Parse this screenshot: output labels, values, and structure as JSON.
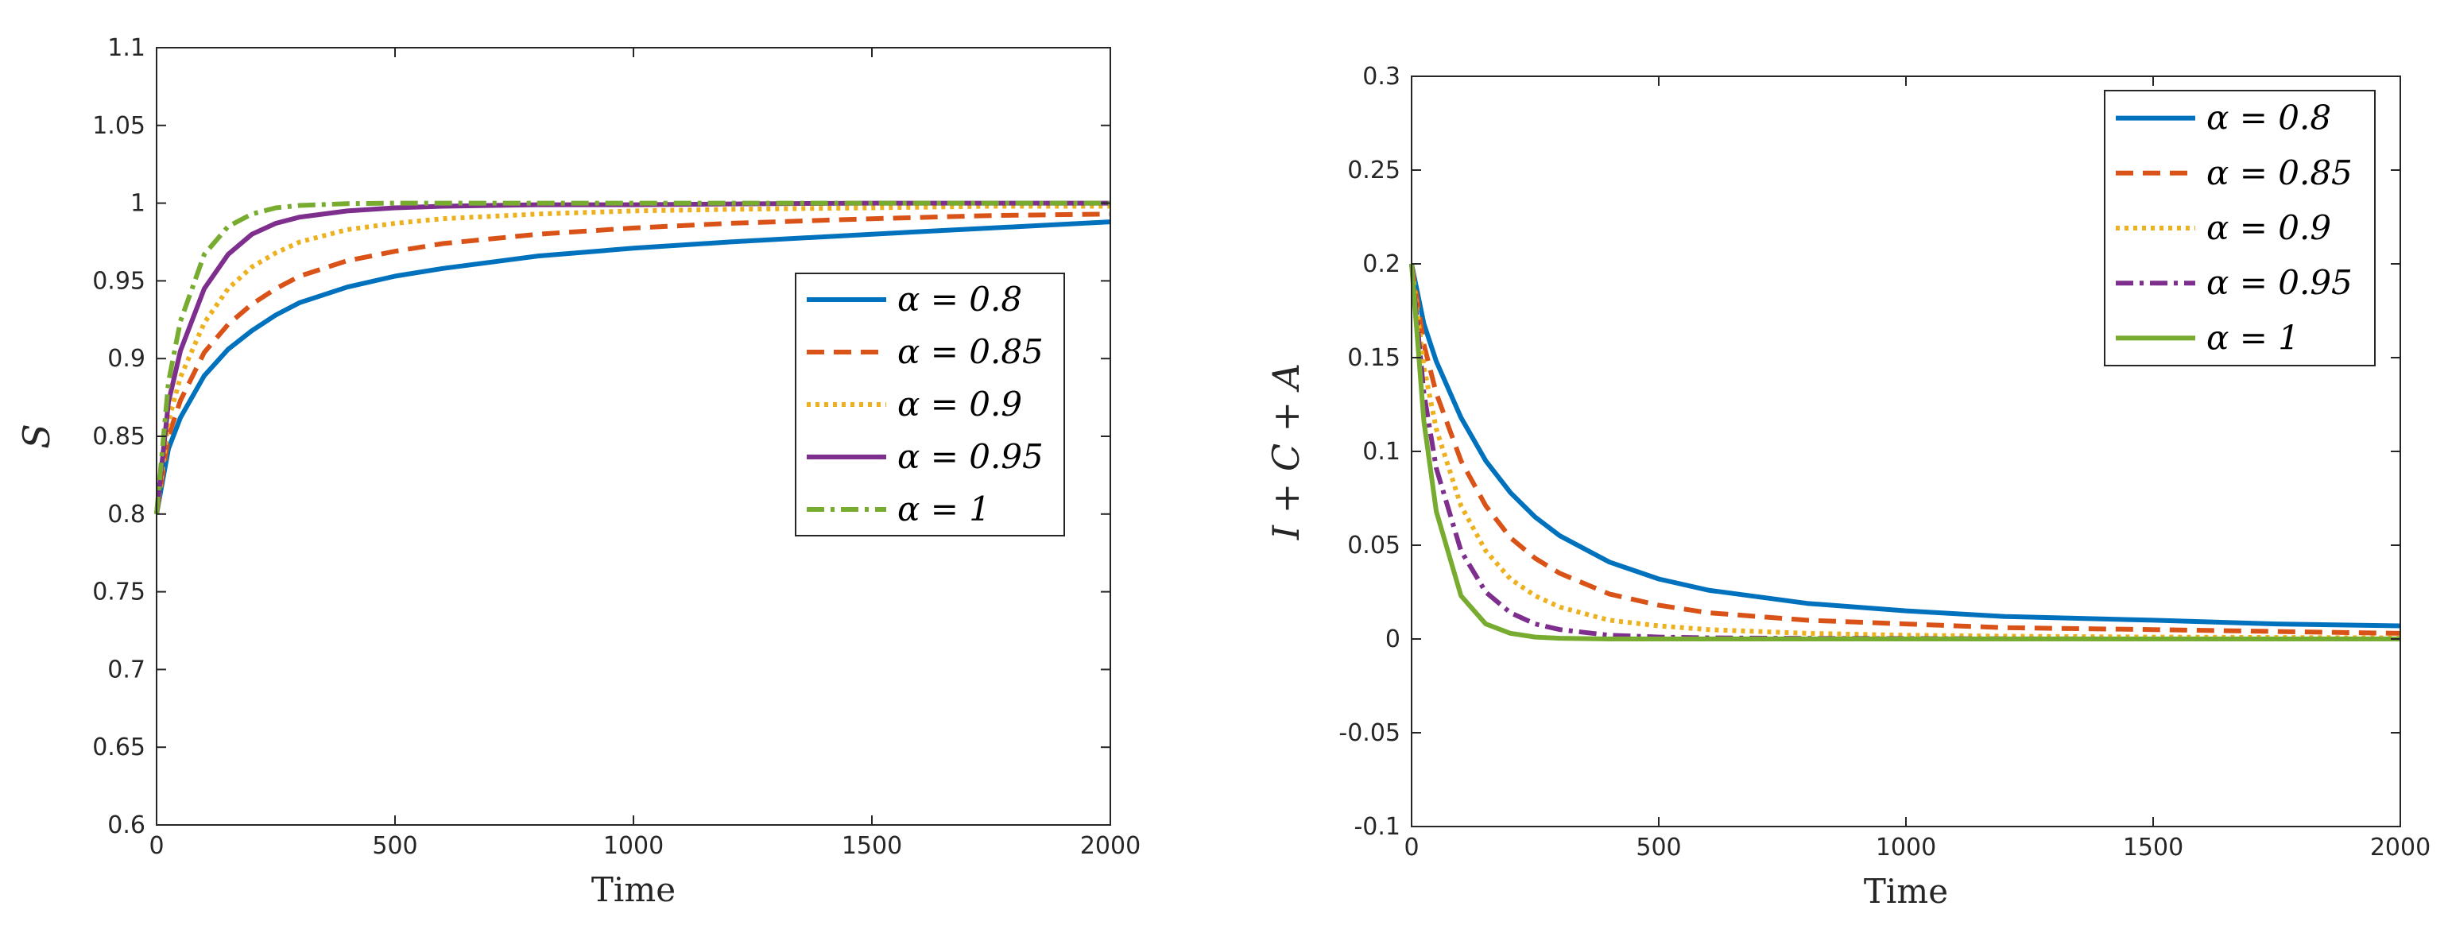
{
  "chart_data": [
    {
      "type": "line",
      "xlabel": "Time",
      "ylabel": "S",
      "xlim": [
        0,
        2000
      ],
      "ylim": [
        0.6,
        1.1
      ],
      "xticks": [
        0,
        500,
        1000,
        1500,
        2000
      ],
      "xtick_labels": [
        "0",
        "500",
        "1000",
        "1500",
        "2000"
      ],
      "yticks": [
        0.6,
        0.65,
        0.7,
        0.75,
        0.8,
        0.85,
        0.9,
        0.95,
        1,
        1.05,
        1.1
      ],
      "ytick_labels": [
        "0.6",
        "0.65",
        "0.7",
        "0.75",
        "0.8",
        "0.85",
        "0.9",
        "0.95",
        "1",
        "1.05",
        "1.1"
      ],
      "legend_position": "middle-right",
      "x": [
        0,
        25,
        50,
        100,
        150,
        200,
        250,
        300,
        400,
        500,
        600,
        800,
        1000,
        1200,
        1500,
        1750,
        2000
      ],
      "series": [
        {
          "name": "α = 0.8",
          "color": "#0072BD",
          "dash": "solid",
          "values": [
            0.8,
            0.842,
            0.862,
            0.889,
            0.906,
            0.918,
            0.928,
            0.936,
            0.946,
            0.953,
            0.958,
            0.966,
            0.971,
            0.975,
            0.98,
            0.984,
            0.988
          ]
        },
        {
          "name": "α = 0.85",
          "color": "#D95319",
          "dash": "dashed",
          "values": [
            0.8,
            0.85,
            0.873,
            0.904,
            0.922,
            0.935,
            0.945,
            0.953,
            0.963,
            0.969,
            0.974,
            0.98,
            0.984,
            0.987,
            0.99,
            0.992,
            0.993
          ]
        },
        {
          "name": "α = 0.9",
          "color": "#EDB120",
          "dash": "dotted",
          "values": [
            0.8,
            0.86,
            0.888,
            0.923,
            0.945,
            0.959,
            0.968,
            0.975,
            0.983,
            0.987,
            0.99,
            0.993,
            0.995,
            0.996,
            0.997,
            0.998,
            0.998
          ]
        },
        {
          "name": "α = 0.95",
          "color": "#7E2F8E",
          "dash": "solid",
          "values": [
            0.8,
            0.872,
            0.905,
            0.945,
            0.967,
            0.98,
            0.987,
            0.991,
            0.995,
            0.997,
            0.998,
            0.999,
            0.999,
            0.9995,
            1.0,
            1.0,
            1.0
          ]
        },
        {
          "name": "α = 1",
          "color": "#77AC30",
          "dash": "dashdot",
          "values": [
            0.8,
            0.885,
            0.924,
            0.967,
            0.985,
            0.993,
            0.997,
            0.9985,
            0.9997,
            1.0,
            1.0,
            1.0,
            1.0,
            1.0,
            1.0,
            1.0,
            1.0
          ]
        }
      ]
    },
    {
      "type": "line",
      "xlabel": "Time",
      "ylabel": "I + C + A",
      "xlim": [
        0,
        2000
      ],
      "ylim": [
        -0.1,
        0.3
      ],
      "xticks": [
        0,
        500,
        1000,
        1500,
        2000
      ],
      "xtick_labels": [
        "0",
        "500",
        "1000",
        "1500",
        "2000"
      ],
      "yticks": [
        -0.1,
        -0.05,
        0,
        0.05,
        0.1,
        0.15,
        0.2,
        0.25,
        0.3
      ],
      "ytick_labels": [
        "-0.1",
        "-0.05",
        "0",
        "0.05",
        "0.1",
        "0.15",
        "0.2",
        "0.25",
        "0.3"
      ],
      "legend_position": "top-right",
      "x": [
        0,
        25,
        50,
        100,
        150,
        200,
        250,
        300,
        400,
        500,
        600,
        800,
        1000,
        1200,
        1500,
        1750,
        2000
      ],
      "series": [
        {
          "name": "α = 0.8",
          "color": "#0072BD",
          "dash": "solid",
          "values": [
            0.2,
            0.168,
            0.148,
            0.118,
            0.095,
            0.078,
            0.065,
            0.055,
            0.041,
            0.032,
            0.026,
            0.019,
            0.015,
            0.012,
            0.01,
            0.008,
            0.007
          ]
        },
        {
          "name": "α = 0.85",
          "color": "#D95319",
          "dash": "dashed",
          "values": [
            0.2,
            0.157,
            0.131,
            0.095,
            0.071,
            0.054,
            0.043,
            0.035,
            0.024,
            0.018,
            0.014,
            0.01,
            0.008,
            0.006,
            0.005,
            0.004,
            0.003
          ]
        },
        {
          "name": "α = 0.9",
          "color": "#EDB120",
          "dash": "dotted",
          "values": [
            0.2,
            0.145,
            0.112,
            0.071,
            0.047,
            0.032,
            0.023,
            0.017,
            0.01,
            0.007,
            0.005,
            0.003,
            0.002,
            0.0015,
            0.001,
            0.0008,
            0.0006
          ]
        },
        {
          "name": "α = 0.95",
          "color": "#7E2F8E",
          "dash": "dashdot",
          "values": [
            0.2,
            0.131,
            0.091,
            0.047,
            0.025,
            0.014,
            0.008,
            0.005,
            0.002,
            0.001,
            0.0006,
            0.0003,
            0.0002,
            0.0001,
            0.0,
            0.0,
            0.0
          ]
        },
        {
          "name": "α = 1",
          "color": "#77AC30",
          "dash": "solid",
          "values": [
            0.2,
            0.116,
            0.068,
            0.023,
            0.008,
            0.003,
            0.001,
            0.0004,
            0.0,
            0.0,
            0.0,
            0.0,
            0.0,
            0.0,
            0.0,
            0.0,
            0.0
          ]
        }
      ]
    }
  ]
}
